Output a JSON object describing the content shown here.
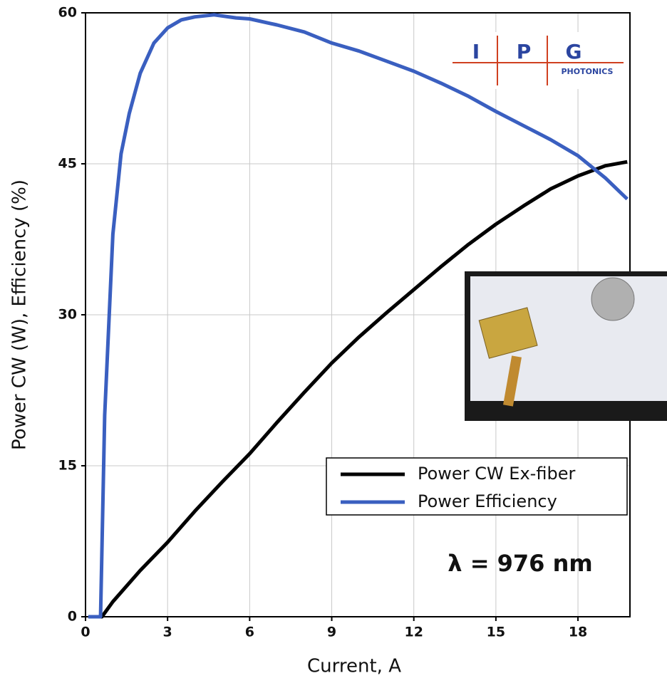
{
  "chart_data": {
    "type": "line",
    "xlabel": "Current, A",
    "ylabel": "Power CW (W), Efficiency (%)",
    "xlim": [
      0,
      19.9
    ],
    "ylim": [
      0,
      60
    ],
    "xticks": [
      0,
      3,
      6,
      9,
      12,
      15,
      18
    ],
    "yticks": [
      0,
      15,
      30,
      45,
      60
    ],
    "grid": true,
    "legend": "lower right",
    "annotations": [
      "λ = 976 nm"
    ],
    "logo": {
      "letters": [
        "I",
        "P",
        "G"
      ],
      "subtitle": "PHOTONICS"
    },
    "series": [
      {
        "name": "Power CW Ex-fiber",
        "color": "#000000",
        "x": [
          0.2,
          0.6,
          1,
          2,
          3,
          4,
          5,
          6,
          7,
          8,
          9,
          10,
          11,
          12,
          13,
          14,
          15,
          16,
          17,
          18,
          19,
          19.8
        ],
        "values": [
          0,
          0,
          1.5,
          4.6,
          7.4,
          10.5,
          13.4,
          16.2,
          19.3,
          22.3,
          25.2,
          27.8,
          30.2,
          32.5,
          34.8,
          37,
          39,
          40.8,
          42.5,
          43.8,
          44.8,
          45.2
        ]
      },
      {
        "name": "Power Efficiency",
        "color": "#3a5fc0",
        "x": [
          0.1,
          0.55,
          0.7,
          1,
          1.3,
          1.6,
          2,
          2.5,
          3,
          3.5,
          4,
          4.7,
          5.5,
          6,
          7,
          8,
          9,
          10,
          11,
          12,
          13,
          14,
          15,
          16,
          17,
          18,
          19,
          19.8
        ],
        "values": [
          0,
          0,
          20,
          38,
          46,
          50,
          54,
          57,
          58.5,
          59.3,
          59.6,
          59.8,
          59.5,
          59.4,
          58.8,
          58.1,
          57,
          56.2,
          55.2,
          54.2,
          53,
          51.7,
          50.2,
          48.8,
          47.4,
          45.8,
          43.6,
          41.5
        ]
      }
    ]
  }
}
